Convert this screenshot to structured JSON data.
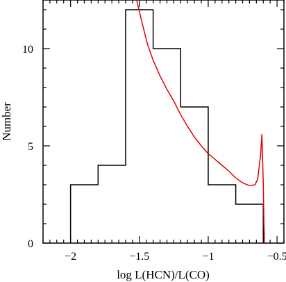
{
  "chart_data": {
    "type": "histogram",
    "xlabel": "log L(HCN)/L(CO)",
    "ylabel": "Number",
    "xlim": [
      -2.2,
      -0.45
    ],
    "ylim": [
      0,
      12.5
    ],
    "x_ticks": [
      -2,
      -1.5,
      -1,
      -0.5
    ],
    "x_tick_labels": [
      "−2",
      "−1.5",
      "−1",
      "−0.5"
    ],
    "y_ticks": [
      0,
      5,
      10
    ],
    "y_tick_labels": [
      "0",
      "5",
      "10"
    ],
    "bin_edges": [
      -2.0,
      -1.8,
      -1.6,
      -1.4,
      -1.2,
      -1.0,
      -0.8,
      -0.6
    ],
    "counts": [
      3,
      4,
      12,
      10,
      7,
      3,
      2
    ],
    "curve": {
      "x": [
        -1.52,
        -1.48,
        -1.44,
        -1.4,
        -1.35,
        -1.3,
        -1.25,
        -1.2,
        -1.15,
        -1.1,
        -1.05,
        -1.0,
        -0.95,
        -0.9,
        -0.85,
        -0.8,
        -0.75,
        -0.7,
        -0.66,
        -0.64,
        -0.62,
        -0.61,
        -0.6,
        -0.595,
        -0.59
      ],
      "y": [
        12.5,
        11.3,
        10.2,
        9.4,
        8.6,
        7.9,
        7.3,
        6.6,
        6.0,
        5.45,
        5.0,
        4.6,
        4.3,
        4.0,
        3.7,
        3.35,
        3.1,
        2.95,
        3.0,
        3.3,
        4.5,
        5.6,
        3.0,
        1.0,
        0.0
      ]
    },
    "colors": {
      "histogram": "#000000",
      "curve": "#e00000"
    }
  }
}
